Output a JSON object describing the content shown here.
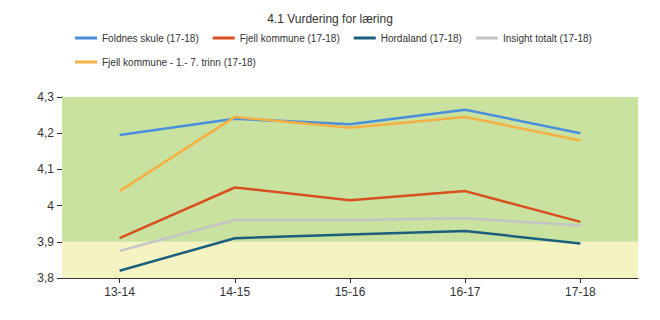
{
  "chart_data": {
    "type": "line",
    "title": "4.1 Vurdering for læring",
    "categories": [
      "13-14",
      "14-15",
      "15-16",
      "16-17",
      "17-18"
    ],
    "series": [
      {
        "name": "Foldnes skule (17-18)",
        "color": "#4a8fdc",
        "values": [
          4.195,
          4.24,
          4.225,
          4.265,
          4.2
        ]
      },
      {
        "name": "Fjell kommune (17-18)",
        "color": "#d8501f",
        "values": [
          3.91,
          4.05,
          4.015,
          4.04,
          3.955
        ]
      },
      {
        "name": "Hordaland (17-18)",
        "color": "#1c5f7d",
        "values": [
          3.82,
          3.91,
          3.92,
          3.93,
          3.895
        ]
      },
      {
        "name": "Insight totalt (17-18)",
        "color": "#c4c4c4",
        "values": [
          3.875,
          3.96,
          3.96,
          3.965,
          3.945
        ]
      },
      {
        "name": "Fjell kommune - 1.- 7. trinn (17-18)",
        "color": "#f4b042",
        "values": [
          4.04,
          4.245,
          4.215,
          4.245,
          4.18
        ]
      }
    ],
    "ylim": [
      3.8,
      4.3
    ],
    "yticks": [
      {
        "value": 3.8,
        "label": "3,8"
      },
      {
        "value": 3.9,
        "label": "3,9"
      },
      4,
      {
        "value": 4.1,
        "label": "4,1"
      },
      {
        "value": 4.2,
        "label": "4,2"
      },
      {
        "value": 4.3,
        "label": "4,3"
      }
    ],
    "bands": [
      {
        "from": 3.8,
        "to": 3.9,
        "color": "#f6f3c2"
      },
      {
        "from": 3.9,
        "to": 4.3,
        "color": "#c9e2a0"
      }
    ],
    "grid": false,
    "legend": "top"
  }
}
